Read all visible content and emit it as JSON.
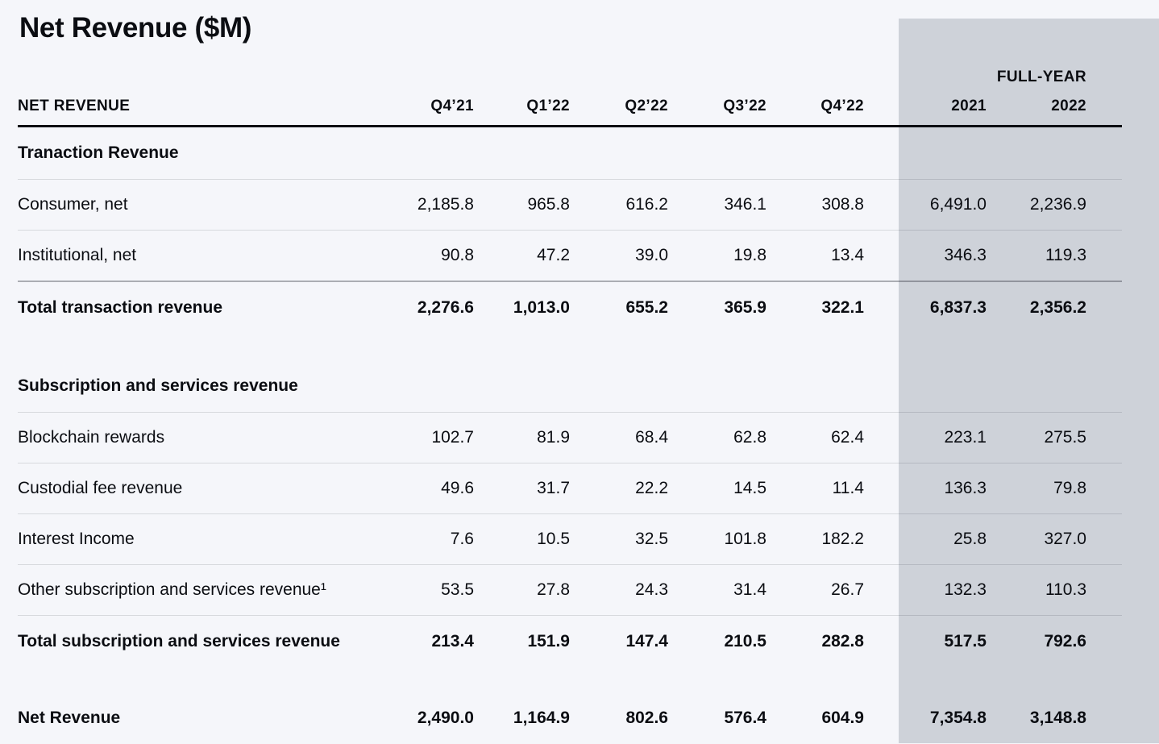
{
  "title": "Net Revenue ($M)",
  "colors": {
    "background": "#f5f6fa",
    "full_year_band": "#ced2d9",
    "text": "#0b0d12"
  },
  "table": {
    "header": {
      "label": "NET REVENUE",
      "full_year": "FULL-YEAR",
      "columns": [
        "Q4’21",
        "Q1’22",
        "Q2’22",
        "Q3’22",
        "Q4’22",
        "2021",
        "2022"
      ]
    },
    "rows": [
      {
        "type": "section",
        "label": "Tranaction Revenue"
      },
      {
        "type": "data",
        "label": "Consumer, net",
        "values": [
          "2,185.8",
          "965.8",
          "616.2",
          "346.1",
          "308.8",
          "6,491.0",
          "2,236.9"
        ]
      },
      {
        "type": "data",
        "label": "Institutional, net",
        "values": [
          "90.8",
          "47.2",
          "39.0",
          "19.8",
          "13.4",
          "346.3",
          "119.3"
        ]
      },
      {
        "type": "total",
        "label": "Total transaction revenue",
        "values": [
          "2,276.6",
          "1,013.0",
          "655.2",
          "365.9",
          "322.1",
          "6,837.3",
          "2,356.2"
        ]
      },
      {
        "type": "section",
        "label": "Subscription and services revenue"
      },
      {
        "type": "data",
        "label": "Blockchain rewards",
        "values": [
          "102.7",
          "81.9",
          "68.4",
          "62.8",
          "62.4",
          "223.1",
          "275.5"
        ]
      },
      {
        "type": "data",
        "label": "Custodial fee revenue",
        "values": [
          "49.6",
          "31.7",
          "22.2",
          "14.5",
          "11.4",
          "136.3",
          "79.8"
        ]
      },
      {
        "type": "data",
        "label": "Interest Income",
        "values": [
          "7.6",
          "10.5",
          "32.5",
          "101.8",
          "182.2",
          "25.8",
          "327.0"
        ]
      },
      {
        "type": "data",
        "label": "Other subscription and services revenue¹",
        "values": [
          "53.5",
          "27.8",
          "24.3",
          "31.4",
          "26.7",
          "132.3",
          "110.3"
        ]
      },
      {
        "type": "total",
        "label": "Total subscription and services revenue",
        "values": [
          "213.4",
          "151.9",
          "147.4",
          "210.5",
          "282.8",
          "517.5",
          "792.6"
        ]
      },
      {
        "type": "total",
        "label": "Net Revenue",
        "values": [
          "2,490.0",
          "1,164.9",
          "802.6",
          "576.4",
          "604.9",
          "7,354.8",
          "3,148.8"
        ]
      }
    ]
  }
}
